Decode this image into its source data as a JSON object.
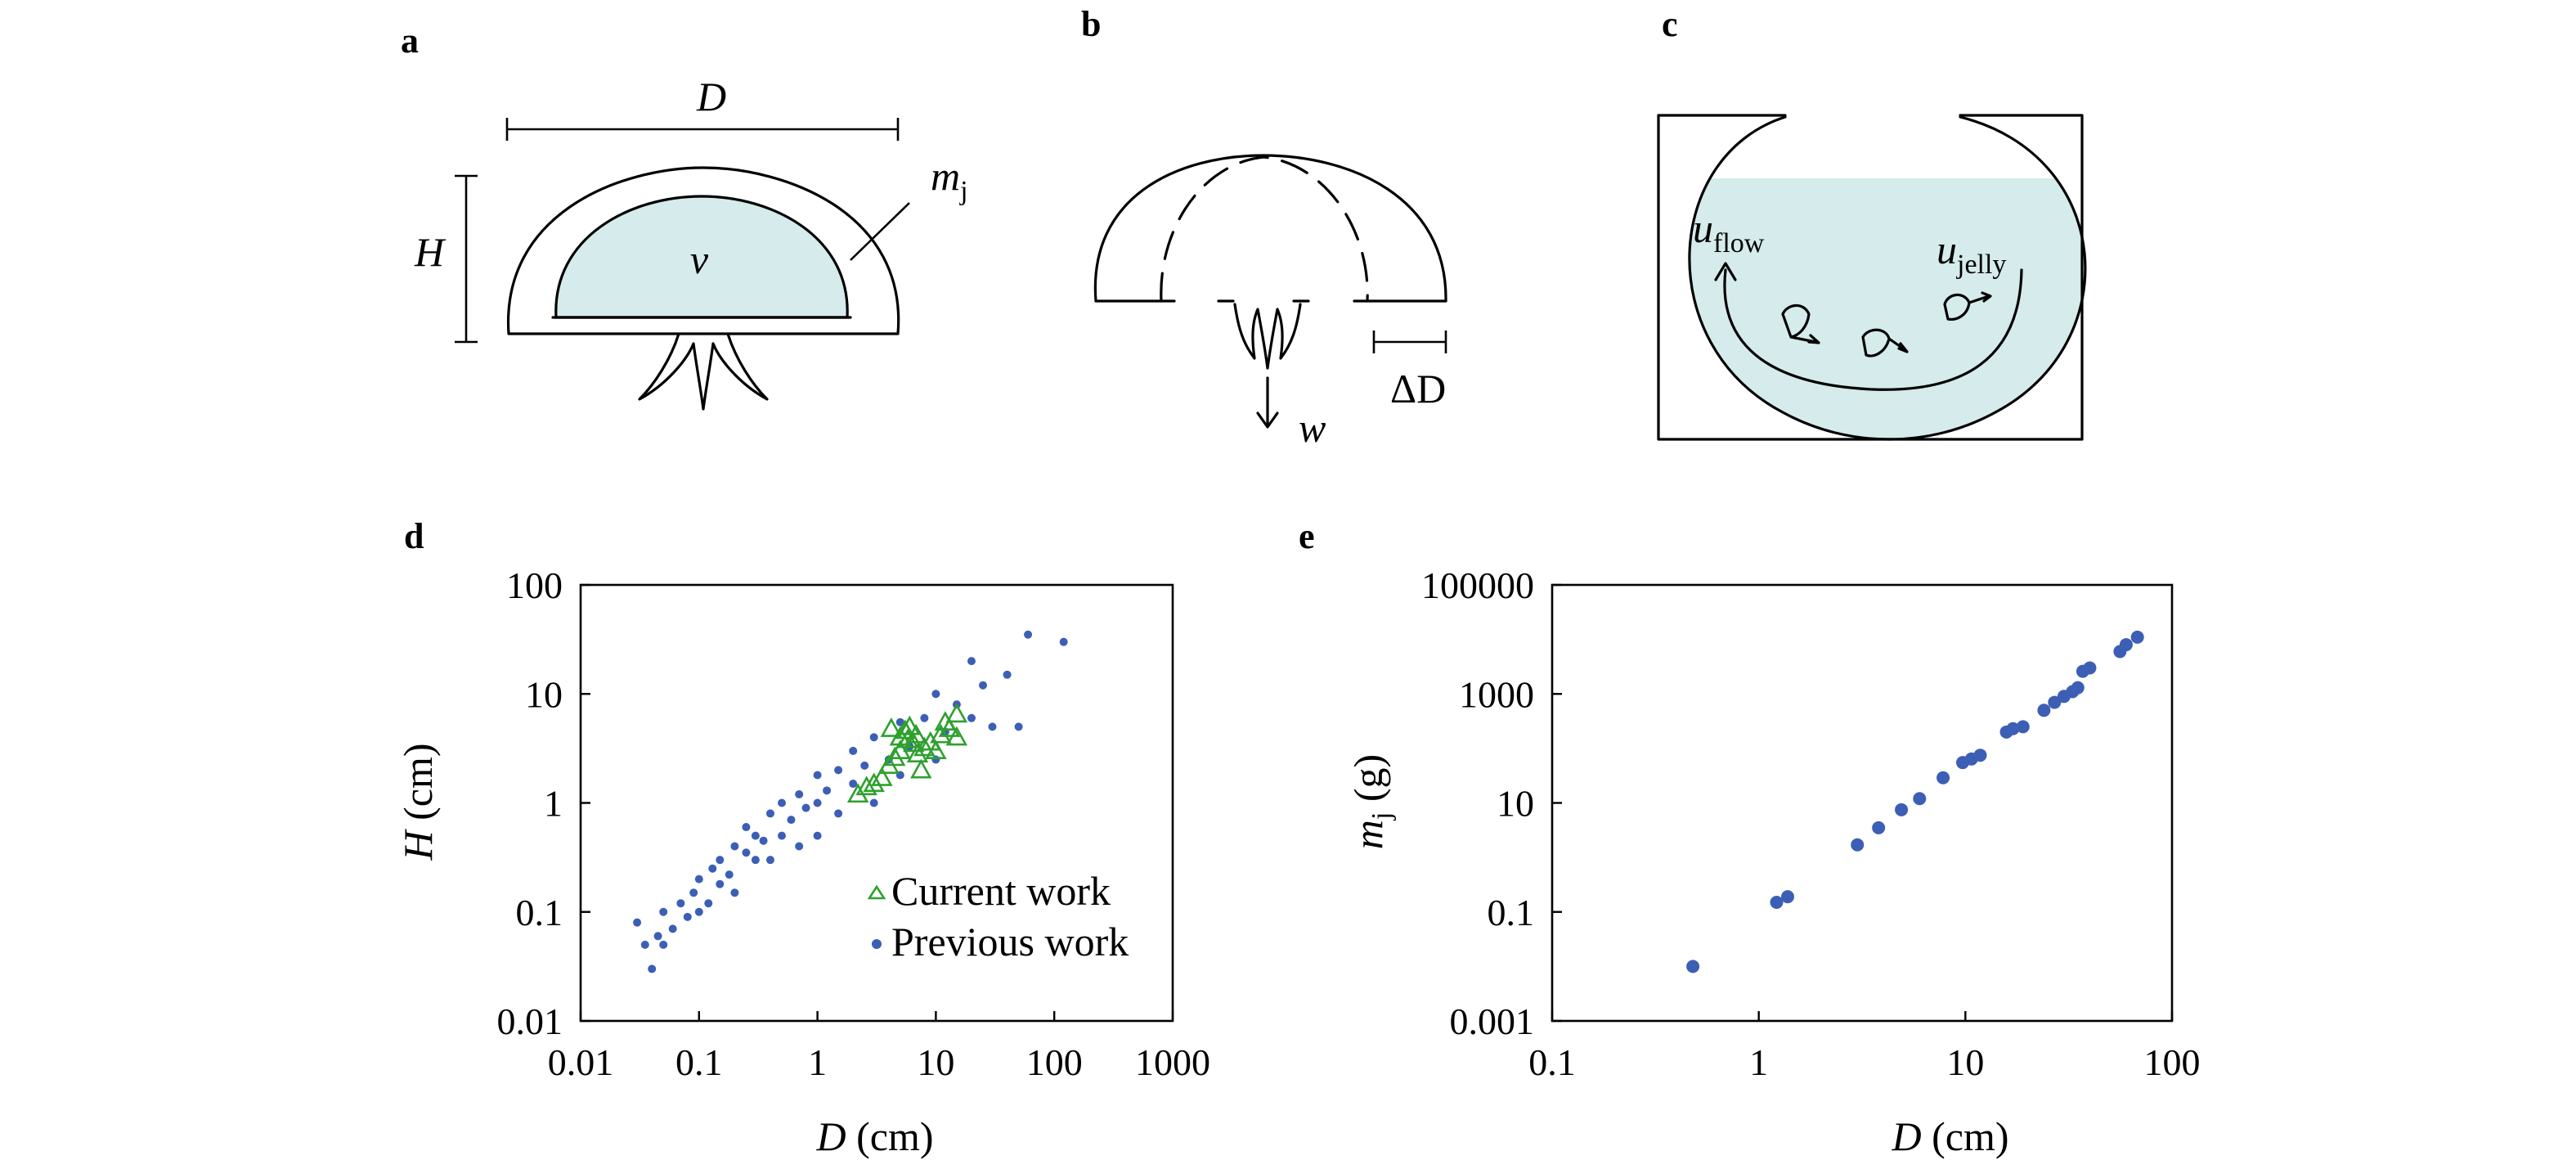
{
  "panels": {
    "a": {
      "label": "a",
      "dim_D": "D",
      "dim_H": "H",
      "mass_main": "m",
      "mass_sub": "j",
      "volume": "v"
    },
    "b": {
      "label": "b",
      "jet": "w",
      "delta_D": "ΔD"
    },
    "c": {
      "label": "c",
      "u_flow_main": "u",
      "u_flow_sub": "flow",
      "u_jelly_main": "u",
      "u_jelly_sub": "jelly"
    },
    "d": {
      "label": "d",
      "ylabel_main": "H",
      "ylabel_unit": " (cm)",
      "xlabel_main": "D",
      "xlabel_unit": " (cm)"
    },
    "e": {
      "label": "e",
      "ylabel_main": "m",
      "ylabel_sub": "j",
      "ylabel_unit": " (g)",
      "xlabel_main": "D",
      "xlabel_unit": " (cm)"
    }
  },
  "colors": {
    "water": "#d5ebec",
    "previous_work": "#3c5fb5",
    "current_work": "#2ea02e",
    "mass_points": "#3c5fb5"
  },
  "chart_data": [
    {
      "panel": "d",
      "type": "scatter",
      "x_scale": "log",
      "y_scale": "log",
      "xlim": [
        0.01,
        1000
      ],
      "ylim": [
        0.01,
        100
      ],
      "xticks": [
        "0.01",
        "0.1",
        "1",
        "10",
        "100",
        "1000"
      ],
      "yticks": [
        "0.01",
        "0.1",
        "1",
        "10",
        "100"
      ],
      "xlabel": "D (cm)",
      "ylabel": "H (cm)",
      "legend_position": "bottom-right",
      "series": [
        {
          "name": "Current work",
          "marker": "open-triangle",
          "points": [
            [
              2.2,
              1.2
            ],
            [
              2.6,
              1.4
            ],
            [
              3.0,
              1.5
            ],
            [
              3.5,
              1.7
            ],
            [
              4.0,
              2.2
            ],
            [
              4.5,
              2.6
            ],
            [
              5.0,
              3.0
            ],
            [
              5.0,
              4.0
            ],
            [
              5.5,
              4.6
            ],
            [
              6.0,
              5.0
            ],
            [
              6.5,
              3.5
            ],
            [
              7.0,
              2.8
            ],
            [
              7.5,
              2.0
            ],
            [
              8.0,
              3.2
            ],
            [
              9.0,
              3.6
            ],
            [
              10.0,
              3.0
            ],
            [
              11.0,
              4.2
            ],
            [
              12.0,
              5.5
            ],
            [
              13.0,
              4.8
            ],
            [
              15.0,
              6.5
            ],
            [
              15.0,
              4.0
            ],
            [
              4.2,
              4.8
            ],
            [
              5.8,
              3.8
            ],
            [
              6.8,
              4.2
            ]
          ]
        },
        {
          "name": "Previous work",
          "marker": "filled-circle",
          "points": [
            [
              0.03,
              0.08
            ],
            [
              0.035,
              0.05
            ],
            [
              0.04,
              0.03
            ],
            [
              0.045,
              0.06
            ],
            [
              0.05,
              0.05
            ],
            [
              0.05,
              0.1
            ],
            [
              0.06,
              0.07
            ],
            [
              0.07,
              0.12
            ],
            [
              0.08,
              0.09
            ],
            [
              0.09,
              0.15
            ],
            [
              0.1,
              0.1
            ],
            [
              0.1,
              0.2
            ],
            [
              0.12,
              0.12
            ],
            [
              0.13,
              0.25
            ],
            [
              0.15,
              0.18
            ],
            [
              0.15,
              0.3
            ],
            [
              0.18,
              0.22
            ],
            [
              0.2,
              0.4
            ],
            [
              0.2,
              0.15
            ],
            [
              0.25,
              0.35
            ],
            [
              0.25,
              0.6
            ],
            [
              0.3,
              0.3
            ],
            [
              0.3,
              0.5
            ],
            [
              0.35,
              0.45
            ],
            [
              0.4,
              0.8
            ],
            [
              0.4,
              0.3
            ],
            [
              0.5,
              0.5
            ],
            [
              0.5,
              1.0
            ],
            [
              0.6,
              0.7
            ],
            [
              0.7,
              0.4
            ],
            [
              0.7,
              1.2
            ],
            [
              0.8,
              0.9
            ],
            [
              1.0,
              1.0
            ],
            [
              1.0,
              0.5
            ],
            [
              1.0,
              1.8
            ],
            [
              1.2,
              1.3
            ],
            [
              1.5,
              0.8
            ],
            [
              1.5,
              2.0
            ],
            [
              2.0,
              1.5
            ],
            [
              2.0,
              3.0
            ],
            [
              2.5,
              2.2
            ],
            [
              3.0,
              1.0
            ],
            [
              3.0,
              4.0
            ],
            [
              4.0,
              2.5
            ],
            [
              5.0,
              5.5
            ],
            [
              5.0,
              1.8
            ],
            [
              6.0,
              3.3
            ],
            [
              8.0,
              6.0
            ],
            [
              10.0,
              10.0
            ],
            [
              10.0,
              2.5
            ],
            [
              12.0,
              4.5
            ],
            [
              15.0,
              8.0
            ],
            [
              20.0,
              20.0
            ],
            [
              20.0,
              6.0
            ],
            [
              25.0,
              12.0
            ],
            [
              30.0,
              5.0
            ],
            [
              40.0,
              15.0
            ],
            [
              50.0,
              5.0
            ],
            [
              60.0,
              35.0
            ],
            [
              120.0,
              30.0
            ]
          ]
        }
      ]
    },
    {
      "panel": "e",
      "type": "scatter",
      "x_scale": "log",
      "y_scale": "log",
      "xlim": [
        0.1,
        100
      ],
      "ylim": [
        0.001,
        100000
      ],
      "xticks": [
        "0.1",
        "1",
        "10",
        "100"
      ],
      "yticks": [
        "0.001",
        "0.1",
        "10",
        "1000",
        "100000"
      ],
      "xlabel": "D (cm)",
      "ylabel": "m j (g)",
      "series": [
        {
          "marker": "filled-circle",
          "points": [
            [
              0.48,
              0.01
            ],
            [
              1.22,
              0.15
            ],
            [
              1.38,
              0.19
            ],
            [
              3.0,
              1.7
            ],
            [
              3.8,
              3.5
            ],
            [
              4.9,
              7.5
            ],
            [
              6.0,
              12.0
            ],
            [
              7.8,
              29.0
            ],
            [
              9.7,
              55.0
            ],
            [
              10.7,
              64.0
            ],
            [
              11.8,
              75.0
            ],
            [
              15.8,
              200.0
            ],
            [
              17.0,
              230.0
            ],
            [
              19.0,
              250.0
            ],
            [
              24.0,
              500.0
            ],
            [
              27.0,
              700.0
            ],
            [
              30.0,
              900.0
            ],
            [
              33.0,
              1100.0
            ],
            [
              35.0,
              1300.0
            ],
            [
              37.0,
              2600.0
            ],
            [
              40.0,
              3000.0
            ],
            [
              56.0,
              6000.0
            ],
            [
              60.0,
              8000.0
            ],
            [
              68.0,
              11000.0
            ]
          ]
        }
      ]
    }
  ]
}
